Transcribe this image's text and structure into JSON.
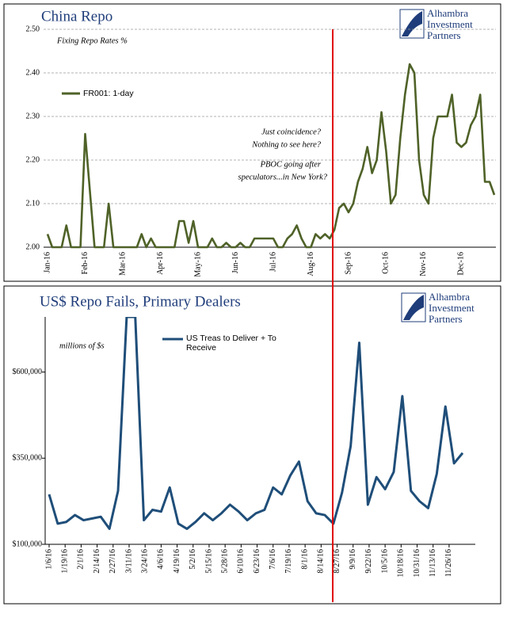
{
  "chart_data": [
    {
      "type": "line",
      "title": "China Repo",
      "subtitle": "Fixing Repo Rates %",
      "logo_text": [
        "Alhambra",
        "Investment",
        "Partners"
      ],
      "annotations": [
        "Just coincidence?",
        "Nothing to see here?",
        "PBOC going after",
        "speculators...in New York?"
      ],
      "categories": [
        "Jan-16",
        null,
        null,
        null,
        null,
        null,
        null,
        null,
        "Feb-16",
        null,
        null,
        null,
        null,
        null,
        null,
        null,
        "Mar-16",
        null,
        null,
        null,
        null,
        null,
        null,
        null,
        "Apr-16",
        null,
        null,
        null,
        null,
        null,
        null,
        null,
        "May-16",
        null,
        null,
        null,
        null,
        null,
        null,
        null,
        "Jun-16",
        null,
        null,
        null,
        null,
        null,
        null,
        null,
        "Jul-16",
        null,
        null,
        null,
        null,
        null,
        null,
        null,
        "Aug-16",
        null,
        null,
        null,
        null,
        null,
        null,
        null,
        "Sep-16",
        null,
        null,
        null,
        null,
        null,
        null,
        null,
        "Oct-16",
        null,
        null,
        null,
        null,
        null,
        null,
        null,
        "Nov-16",
        null,
        null,
        null,
        null,
        null,
        null,
        null,
        "Dec-16",
        null,
        null,
        null,
        null,
        null,
        null,
        null
      ],
      "series": [
        {
          "name": "FR001: 1-day",
          "color": "#4f6228",
          "values": [
            2.03,
            2.0,
            2.0,
            2.0,
            2.05,
            2.0,
            2.0,
            2.0,
            2.26,
            2.13,
            2.0,
            2.0,
            2.0,
            2.1,
            2.0,
            2.0,
            2.0,
            2.0,
            2.0,
            2.0,
            2.03,
            2.0,
            2.02,
            2.0,
            2.0,
            2.0,
            2.0,
            2.0,
            2.06,
            2.06,
            2.01,
            2.06,
            2.0,
            2.0,
            2.0,
            2.02,
            2.0,
            2.0,
            2.01,
            2.0,
            2.0,
            2.01,
            2.0,
            2.0,
            2.02,
            2.02,
            2.02,
            2.02,
            2.02,
            2.0,
            2.0,
            2.02,
            2.03,
            2.05,
            2.02,
            2.0,
            2.0,
            2.03,
            2.02,
            2.03,
            2.02,
            2.04,
            2.09,
            2.1,
            2.08,
            2.1,
            2.15,
            2.18,
            2.23,
            2.17,
            2.2,
            2.31,
            2.22,
            2.1,
            2.12,
            2.25,
            2.35,
            2.42,
            2.4,
            2.2,
            2.12,
            2.1,
            2.25,
            2.3,
            2.3,
            2.3,
            2.35,
            2.24,
            2.23,
            2.24,
            2.28,
            2.3,
            2.35,
            2.15,
            2.15,
            2.12
          ]
        }
      ],
      "ylim": [
        2,
        2.5
      ],
      "yticks": [
        {
          "value": 2,
          "label": "2.00"
        },
        {
          "value": 2.1,
          "label": "2.10"
        },
        {
          "value": 2.2,
          "label": "2.20"
        },
        {
          "value": 2.3,
          "label": "2.30"
        },
        {
          "value": 2.4,
          "label": "2.40"
        },
        {
          "value": 2.5,
          "label": "2.50"
        }
      ],
      "grid": true
    },
    {
      "type": "line",
      "title": "US$ Repo Fails, Primary Dealers",
      "subtitle": "millions of $s",
      "logo_text": [
        "Alhambra",
        "Investment",
        "Partners"
      ],
      "x": [
        "1/6/16",
        "1/13/16",
        "1/20/16",
        "1/27/16",
        "2/3/16",
        "2/10/16",
        "2/17/16",
        "2/24/16",
        "3/2/16",
        "3/9/16",
        "3/16/16",
        "3/23/16",
        "3/30/16",
        "4/6/16",
        "4/13/16",
        "4/20/16",
        "4/27/16",
        "5/4/16",
        "5/11/16",
        "5/18/16",
        "5/25/16",
        "6/1/16",
        "6/8/16",
        "6/15/16",
        "6/22/16",
        "6/29/16",
        "7/6/16",
        "7/13/16",
        "7/20/16",
        "7/27/16",
        "8/3/16",
        "8/10/16",
        "8/17/16",
        "8/24/16",
        "8/31/16",
        "9/7/16",
        "9/14/16",
        "9/21/16",
        "9/28/16",
        "10/5/16",
        "10/12/16",
        "10/19/16",
        "10/26/16",
        "11/2/16",
        "11/9/16",
        "11/16/16",
        "11/23/16",
        "11/30/16",
        "12/7/16"
      ],
      "series": [
        {
          "name": "US Treas to Deliver + To Receive",
          "color": "#1f4e79",
          "values": [
            245000,
            160000,
            165000,
            185000,
            170000,
            175000,
            180000,
            145000,
            255000,
            760000,
            760000,
            170000,
            200000,
            195000,
            265000,
            160000,
            145000,
            165000,
            190000,
            170000,
            190000,
            215000,
            195000,
            170000,
            190000,
            200000,
            265000,
            245000,
            300000,
            340000,
            225000,
            190000,
            185000,
            160000,
            250000,
            385000,
            685000,
            215000,
            295000,
            260000,
            310000,
            530000,
            255000,
            225000,
            205000,
            305000,
            500000,
            335000,
            365000
          ]
        }
      ],
      "xlim": [
        "1/6/16",
        "12/7/16"
      ],
      "xticks": [
        "1/6/16",
        "1/19/16",
        "2/1/16",
        "2/14/16",
        "2/27/16",
        "3/11/16",
        "3/24/16",
        "4/6/16",
        "4/19/16",
        "5/2/16",
        "5/15/16",
        "5/28/16",
        "6/10/16",
        "6/23/16",
        "7/6/16",
        "7/19/16",
        "8/1/16",
        "8/14/16",
        "8/27/16",
        "9/9/16",
        "9/22/16",
        "10/5/16",
        "10/18/16",
        "10/31/16",
        "11/13/16",
        "11/26/16"
      ],
      "ylim": [
        100000,
        760000
      ],
      "yticks": [
        {
          "value": 100000,
          "label": "$100,000"
        },
        {
          "value": 350000,
          "label": "$350,000"
        },
        {
          "value": 600000,
          "label": "$600,000"
        }
      ],
      "grid": false
    }
  ]
}
